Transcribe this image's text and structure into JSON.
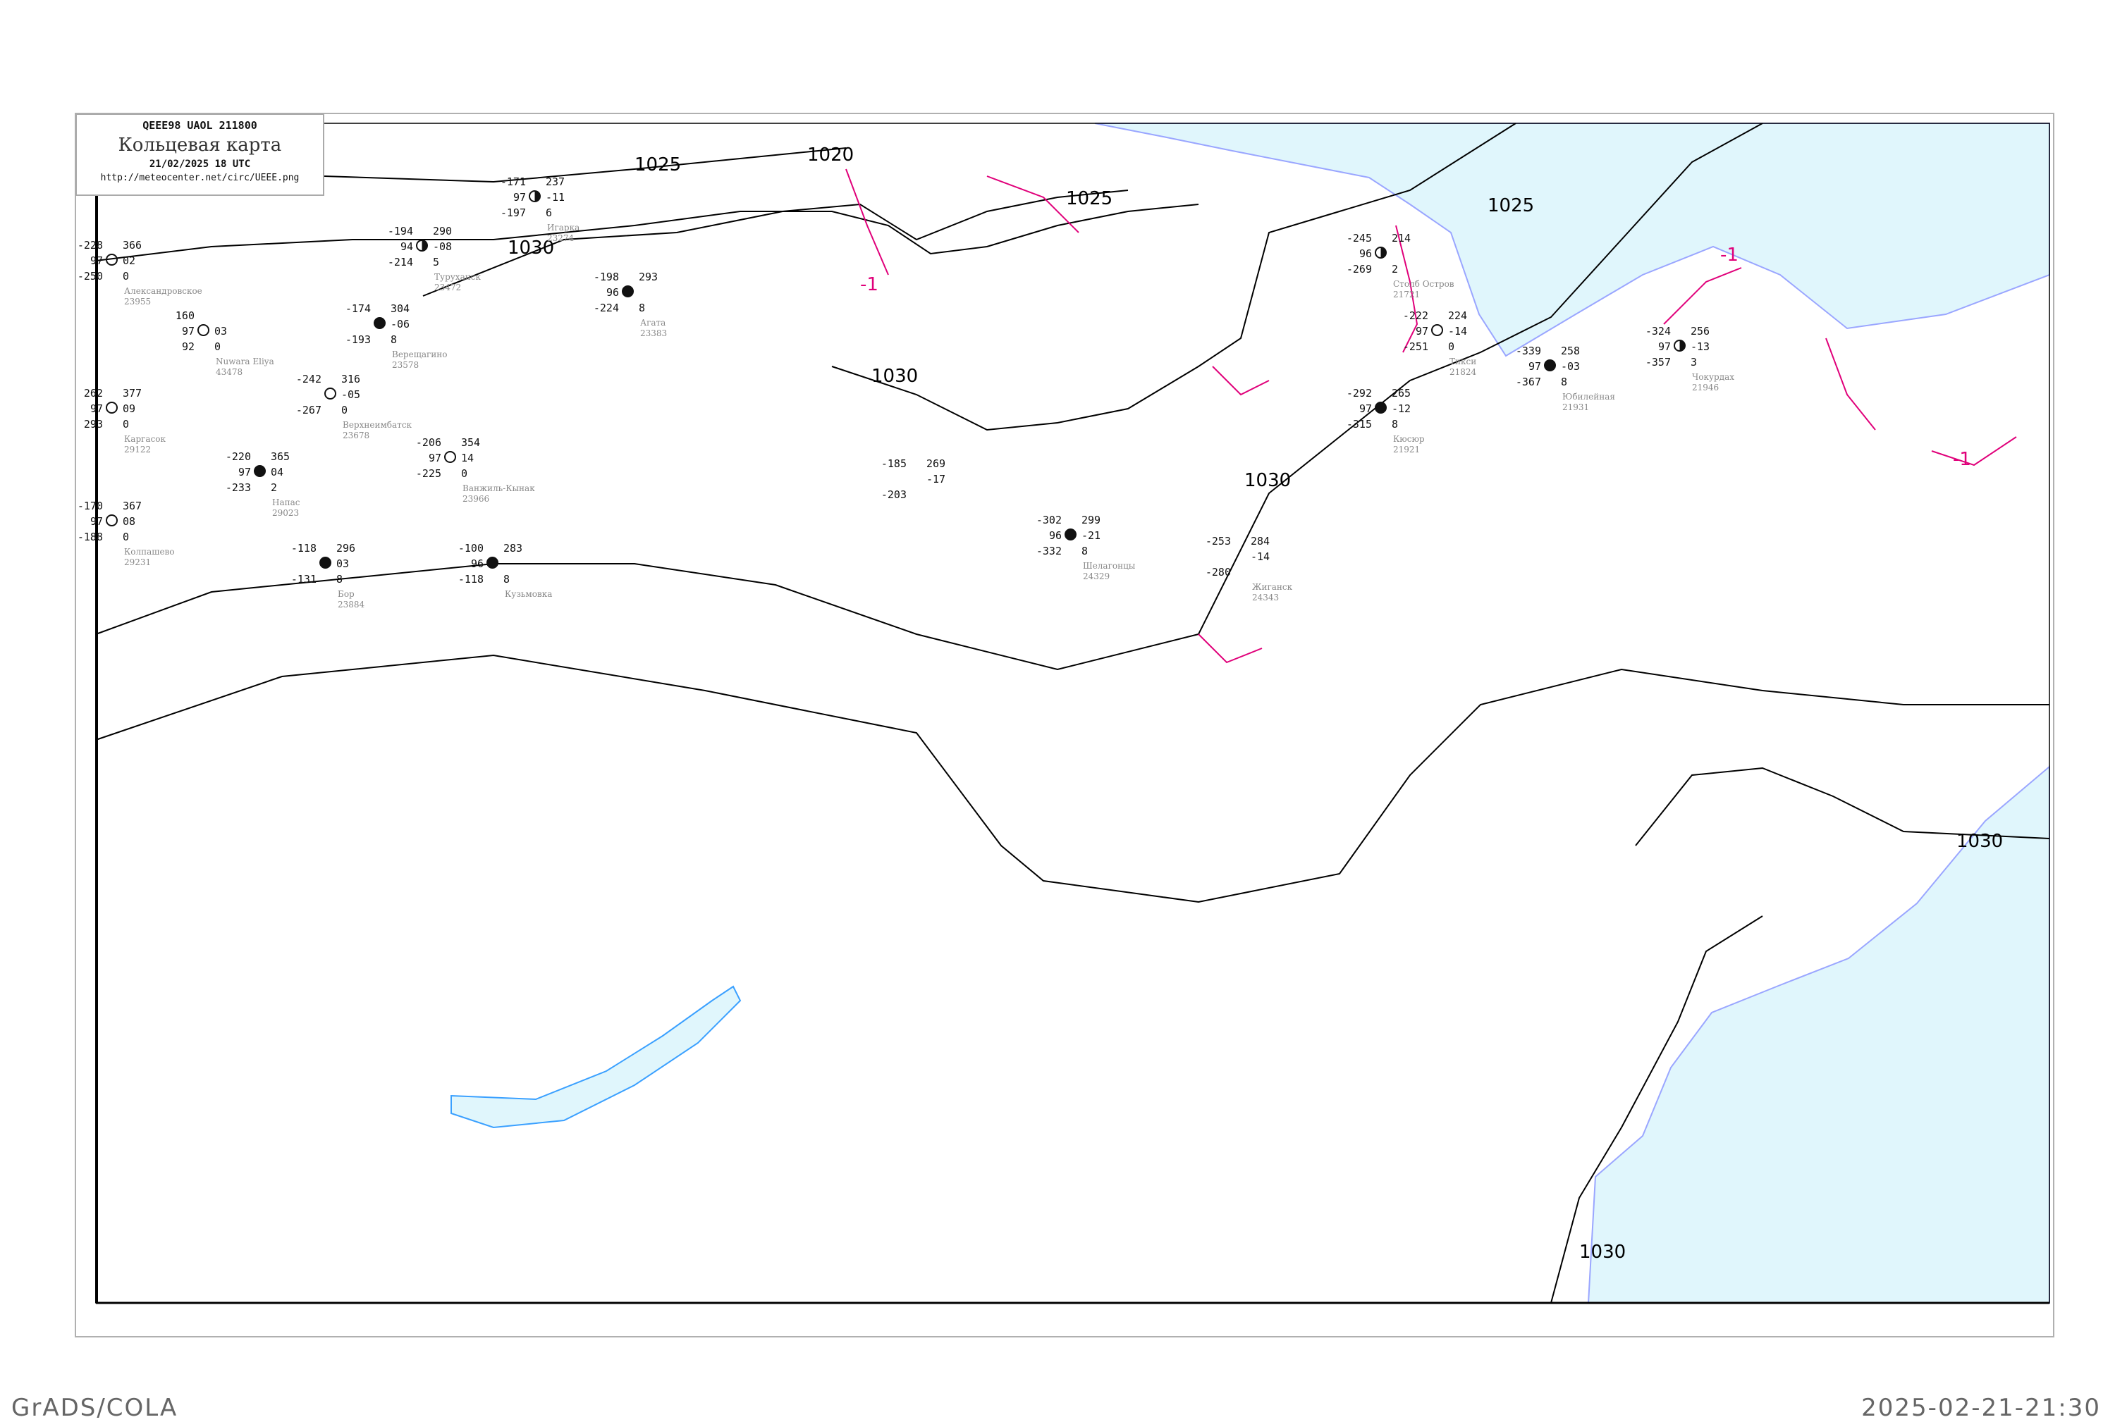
{
  "header": {
    "code": "QEEE98  UAOL  211800",
    "title": "Кольцевая карта",
    "datetime": "21/02/2025 18 UTC",
    "url": "http://meteocenter.net/circ/UEEE.png"
  },
  "footer": {
    "left": "GrADS/COLA",
    "right": "2025-02-21-21:30"
  },
  "colors": {
    "isobar": "#000000",
    "isotherm": "#e0007a",
    "sea": "#e0f6fc",
    "coast": "#9aa6ff",
    "river": "#3aa0ff",
    "precip_marker": "#3399ff"
  },
  "isobar_labels": [
    "1025",
    "1020",
    "1025",
    "1030",
    "1030",
    "1030",
    "1025",
    "1030",
    "1030"
  ],
  "isotherm_labels": [
    "-1",
    "-1",
    "-1"
  ],
  "stations": [
    {
      "name": "Александровское",
      "id": "23955",
      "temp": "-228",
      "vis": "97",
      "dew": "-250",
      "pressure": "366",
      "tendency": "02",
      "cloud": "0",
      "cover": "empty"
    },
    {
      "name": "Nuwara Eliya",
      "id": "43478",
      "temp": "160",
      "vis": "97",
      "dew": "92",
      "pressure": "",
      "tendency": "03",
      "cloud": "0",
      "cover": "empty"
    },
    {
      "name": "Каргасок",
      "id": "29122",
      "temp": "262",
      "vis": "97",
      "dew": "293",
      "pressure": "377",
      "tendency": "09",
      "cloud": "0",
      "cover": "empty"
    },
    {
      "name": "Напас",
      "id": "29023",
      "temp": "-220",
      "vis": "97",
      "dew": "-233",
      "pressure": "365",
      "tendency": "04",
      "cloud": "2",
      "cover": "full"
    },
    {
      "name": "Ванжиль-Кынак",
      "id": "23966",
      "temp": "-206",
      "vis": "97",
      "dew": "-225",
      "pressure": "354",
      "tendency": "14",
      "cloud": "0",
      "cover": "empty"
    },
    {
      "name": "Колпашево",
      "id": "29231",
      "temp": "-170",
      "vis": "97",
      "dew": "-188",
      "pressure": "367",
      "tendency": "08",
      "cloud": "0",
      "cover": "empty"
    },
    {
      "name": "Верещагино",
      "id": "23578",
      "temp": "-174",
      "vis": "",
      "dew": "-193",
      "pressure": "304",
      "tendency": "-06",
      "cloud": "8",
      "cover": "full"
    },
    {
      "name": "Верхнеимбатск",
      "id": "23678",
      "temp": "-242",
      "vis": "",
      "dew": "-267",
      "pressure": "316",
      "tendency": "-05",
      "cloud": "0",
      "cover": "empty"
    },
    {
      "name": "Туруханск",
      "id": "23472",
      "temp": "-194",
      "vis": "94",
      "dew": "-214",
      "pressure": "290",
      "tendency": "-08",
      "cloud": "5",
      "cover": "half"
    },
    {
      "name": "Игарка",
      "id": "23274",
      "temp": "-171",
      "vis": "97",
      "dew": "-197",
      "pressure": "237",
      "tendency": "-11",
      "cloud": "6",
      "cover": "half"
    },
    {
      "name": "Агата",
      "id": "23383",
      "temp": "-198",
      "vis": "96",
      "dew": "-224",
      "pressure": "293",
      "tendency": "",
      "cloud": "8",
      "cover": "full"
    },
    {
      "name": "Бор",
      "id": "23884",
      "temp": "-118",
      "vis": "",
      "dew": "-131",
      "pressure": "296",
      "tendency": "03",
      "cloud": "8",
      "cover": "full"
    },
    {
      "name": "Кузьмовка",
      "id": "",
      "temp": "-100",
      "vis": "96",
      "dew": "-118",
      "pressure": "283",
      "tendency": "",
      "cloud": "8",
      "cover": "full"
    },
    {
      "name": "Столб Остров",
      "id": "21721",
      "temp": "-245",
      "vis": "96",
      "dew": "-269",
      "pressure": "214",
      "tendency": "",
      "cloud": "2",
      "cover": "half"
    },
    {
      "name": "Тикси",
      "id": "21824",
      "temp": "-222",
      "vis": "97",
      "dew": "-251",
      "pressure": "224",
      "tendency": "-14",
      "cloud": "0",
      "cover": "empty"
    },
    {
      "name": "Кюсюр",
      "id": "21921",
      "temp": "-292",
      "vis": "97",
      "dew": "-315",
      "pressure": "265",
      "tendency": "-12",
      "cloud": "8",
      "cover": "full"
    },
    {
      "name": "Юбилейная",
      "id": "21931",
      "temp": "-339",
      "vis": "97",
      "dew": "-367",
      "pressure": "258",
      "tendency": "-03",
      "cloud": "8",
      "cover": "full"
    },
    {
      "name": "Чокурдах",
      "id": "21946",
      "temp": "-324",
      "vis": "97",
      "dew": "-357",
      "pressure": "256",
      "tendency": "-13",
      "cloud": "3",
      "cover": "half"
    },
    {
      "name": "Шелагонцы",
      "id": "24329",
      "temp": "-302",
      "vis": "96",
      "dew": "-332",
      "pressure": "299",
      "tendency": "-21",
      "cloud": "8",
      "cover": "full"
    },
    {
      "name": "Жиганск",
      "id": "24343",
      "temp": "-253",
      "vis": "",
      "dew": "-280",
      "pressure": "284",
      "tendency": "-14",
      "cloud": "",
      "cover": "none"
    },
    {
      "name": "",
      "id": "",
      "temp": "-185",
      "vis": "",
      "dew": "-203",
      "pressure": "269",
      "tendency": "-17",
      "cloud": "",
      "cover": "none"
    }
  ]
}
